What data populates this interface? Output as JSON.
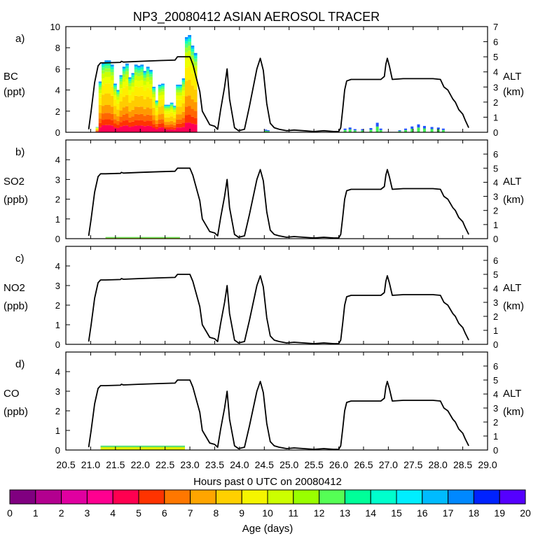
{
  "chart_data": {
    "type": "line",
    "title": "NP3_20080412 ASIAN AEROSOL TRACER",
    "xlabel": "Hours past 0 UTC on 20080412",
    "xlim": [
      20.5,
      29.0
    ],
    "xticks": [
      "20.5",
      "21.0",
      "21.5",
      "22.0",
      "22.5",
      "23.0",
      "23.5",
      "24.0",
      "24.5",
      "25.0",
      "25.5",
      "26.0",
      "26.5",
      "27.0",
      "27.5",
      "28.0",
      "28.5",
      "29.0"
    ],
    "alt_series": {
      "name": "Flight altitude (km)",
      "x": [
        20.96,
        21.01,
        21.08,
        21.15,
        21.2,
        21.3,
        21.6,
        21.62,
        21.66,
        22.0,
        22.4,
        22.7,
        22.75,
        23.0,
        23.06,
        23.2,
        23.25,
        23.4,
        23.5,
        23.56,
        23.62,
        23.7,
        23.75,
        23.8,
        23.9,
        23.98,
        24.1,
        24.2,
        24.35,
        24.42,
        24.48,
        24.55,
        24.62,
        24.7,
        24.8,
        24.95,
        25.1,
        25.3,
        25.5,
        25.7,
        25.9,
        26.0,
        26.04,
        26.08,
        26.12,
        26.16,
        26.25,
        26.5,
        26.85,
        26.92,
        26.95,
        26.98,
        27.02,
        27.08,
        27.3,
        27.6,
        27.9,
        28.05,
        28.12,
        28.2,
        28.3,
        28.35,
        28.42,
        28.5,
        28.55,
        28.62
      ],
      "y": [
        0.2,
        1.4,
        3.3,
        4.4,
        4.6,
        4.6,
        4.63,
        4.7,
        4.65,
        4.7,
        4.75,
        4.78,
        5.0,
        5.0,
        4.5,
        2.7,
        1.4,
        0.5,
        0.4,
        0.2,
        1.5,
        3.0,
        4.2,
        2.2,
        0.3,
        0.1,
        0.2,
        1.7,
        4.2,
        4.9,
        4.1,
        1.9,
        0.6,
        0.3,
        0.2,
        0.1,
        0.15,
        0.1,
        0.05,
        0.1,
        0.05,
        0.05,
        0.3,
        1.5,
        2.8,
        3.4,
        3.5,
        3.5,
        3.5,
        3.7,
        4.5,
        4.9,
        4.4,
        3.5,
        3.55,
        3.55,
        3.55,
        3.5,
        3.0,
        2.8,
        2.2,
        2.0,
        1.5,
        1.2,
        0.8,
        0.3
      ]
    },
    "panels": [
      {
        "label": "a)",
        "species": "BC",
        "units": "(ppt)",
        "ylim": [
          0,
          10
        ],
        "yticks": [
          "0",
          "2",
          "4",
          "6",
          "8",
          "10"
        ]
      },
      {
        "label": "b)",
        "species": "SO2",
        "units": "(ppb)",
        "ylim": [
          0,
          5
        ],
        "yticks": [
          "0",
          "1",
          "2",
          "3",
          "4"
        ]
      },
      {
        "label": "c)",
        "species": "NO2",
        "units": "(ppb)",
        "ylim": [
          0,
          5
        ],
        "yticks": [
          "0",
          "1",
          "2",
          "3",
          "4"
        ]
      },
      {
        "label": "d)",
        "species": "CO",
        "units": "(ppb)",
        "ylim": [
          0,
          5
        ],
        "yticks": [
          "0",
          "1",
          "2",
          "3",
          "4"
        ]
      }
    ],
    "right_axis": {
      "label": "ALT",
      "units": "(km)",
      "ylim": [
        0,
        7
      ],
      "yticks_a": [
        "0",
        "1",
        "2",
        "3",
        "4",
        "5",
        "6",
        "7"
      ],
      "yticks_bcd": [
        "0",
        "1",
        "2",
        "3",
        "4",
        "5",
        "6"
      ]
    },
    "bc_stacked_columns": {
      "x_start": 21.1,
      "x_step": 0.06,
      "totals": [
        0.5,
        4.8,
        6.6,
        6.8,
        6.8,
        6.4,
        4.6,
        4.0,
        5.4,
        6.2,
        6.5,
        5.2,
        5.6,
        6.4,
        6.3,
        6.4,
        5.8,
        6.2,
        5.9,
        4.3,
        3.0,
        4.5,
        4.6,
        2.6,
        2.6,
        2.8,
        2.5,
        4.5,
        4.5,
        5.1,
        9.0,
        9.2,
        8.2,
        7.5
      ],
      "layer_colors": [
        "#ff0055",
        "#ff3300",
        "#ff6600",
        "#ff9900",
        "#ffcc00",
        "#ffee00",
        "#eeff00",
        "#ccff00",
        "#99ff33",
        "#55ff77",
        "#11ffbb",
        "#00ccff",
        "#0088ff"
      ],
      "layer_fractions": [
        0.1,
        0.08,
        0.09,
        0.11,
        0.16,
        0.14,
        0.09,
        0.07,
        0.05,
        0.04,
        0.03,
        0.02,
        0.02
      ]
    },
    "bc_late_blips": [
      {
        "x": 24.5,
        "v": 0.25
      },
      {
        "x": 24.55,
        "v": 0.2
      },
      {
        "x": 26.1,
        "v": 0.35
      },
      {
        "x": 26.2,
        "v": 0.45
      },
      {
        "x": 26.3,
        "v": 0.3
      },
      {
        "x": 26.45,
        "v": 0.3
      },
      {
        "x": 26.62,
        "v": 0.4
      },
      {
        "x": 26.75,
        "v": 0.9
      },
      {
        "x": 26.82,
        "v": 0.35
      },
      {
        "x": 27.2,
        "v": 0.2
      },
      {
        "x": 27.32,
        "v": 0.35
      },
      {
        "x": 27.45,
        "v": 0.55
      },
      {
        "x": 27.58,
        "v": 0.75
      },
      {
        "x": 27.7,
        "v": 0.6
      },
      {
        "x": 27.85,
        "v": 0.5
      },
      {
        "x": 27.98,
        "v": 0.45
      },
      {
        "x": 28.08,
        "v": 0.35
      }
    ],
    "bottom_strips": [
      {
        "panel": 1,
        "x0": 21.3,
        "x1": 22.8,
        "v": 0.08
      },
      {
        "panel": 3,
        "x0": 21.2,
        "x1": 22.9,
        "v": 0.22
      }
    ],
    "colorbar": {
      "label": "Age (days)",
      "ticks": [
        "0",
        "1",
        "2",
        "3",
        "4",
        "5",
        "6",
        "7",
        "8",
        "9",
        "10",
        "11",
        "12",
        "13",
        "14",
        "15",
        "16",
        "17",
        "18",
        "19",
        "20"
      ],
      "colors": [
        "#800080",
        "#b3008f",
        "#e000a0",
        "#ff0090",
        "#ff0050",
        "#ff3300",
        "#ff7700",
        "#ffa500",
        "#ffd000",
        "#f5f500",
        "#ccff00",
        "#99ff00",
        "#55ff55",
        "#00ff99",
        "#00ffcc",
        "#00eeff",
        "#00bbff",
        "#0088ff",
        "#0022ff",
        "#5500ff"
      ]
    }
  }
}
